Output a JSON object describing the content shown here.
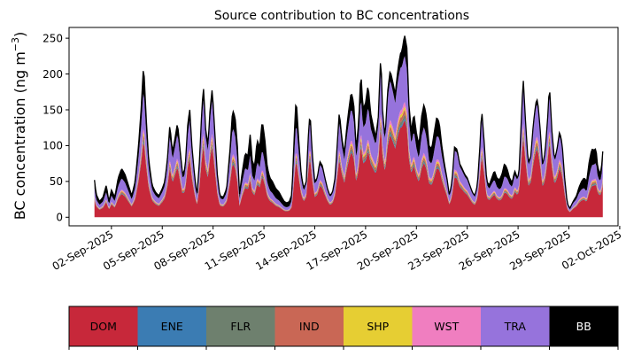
{
  "chart_data": {
    "type": "area",
    "stacked": true,
    "title": "Source contribution to BC concentrations",
    "ylabel": "BC concentration (ng m",
    "ylabel_superscript": "−3",
    "ylabel_close": ")",
    "xlabel": "",
    "ylim": [
      -12,
      265
    ],
    "yticks": [
      0,
      50,
      100,
      150,
      200,
      250
    ],
    "x_start_day": 1.0,
    "x_end_day": 31.0,
    "xlim_days": [
      -0.5,
      31.9
    ],
    "xticks": [
      {
        "day": 2,
        "label": "02-Sep-2025"
      },
      {
        "day": 5,
        "label": "05-Sep-2025"
      },
      {
        "day": 8,
        "label": "08-Sep-2025"
      },
      {
        "day": 11,
        "label": "11-Sep-2025"
      },
      {
        "day": 14,
        "label": "14-Sep-2025"
      },
      {
        "day": 17,
        "label": "17-Sep-2025"
      },
      {
        "day": 20,
        "label": "20-Sep-2025"
      },
      {
        "day": 23,
        "label": "23-Sep-2025"
      },
      {
        "day": 26,
        "label": "26-Sep-2025"
      },
      {
        "day": 29,
        "label": "29-Sep-2025"
      },
      {
        "day": 32,
        "label": "02-Oct-2025"
      }
    ],
    "total_anchors": [
      [
        1.0,
        52
      ],
      [
        1.1,
        32
      ],
      [
        1.3,
        22
      ],
      [
        1.5,
        28
      ],
      [
        1.7,
        45
      ],
      [
        1.85,
        22
      ],
      [
        2.0,
        38
      ],
      [
        2.2,
        28
      ],
      [
        2.4,
        55
      ],
      [
        2.6,
        68
      ],
      [
        2.8,
        60
      ],
      [
        3.0,
        45
      ],
      [
        3.2,
        30
      ],
      [
        3.4,
        50
      ],
      [
        3.6,
        100
      ],
      [
        3.75,
        150
      ],
      [
        3.9,
        215
      ],
      [
        4.05,
        140
      ],
      [
        4.2,
        80
      ],
      [
        4.4,
        45
      ],
      [
        4.6,
        35
      ],
      [
        4.8,
        30
      ],
      [
        5.0,
        40
      ],
      [
        5.15,
        50
      ],
      [
        5.3,
        80
      ],
      [
        5.45,
        130
      ],
      [
        5.6,
        90
      ],
      [
        5.75,
        110
      ],
      [
        5.9,
        132
      ],
      [
        6.05,
        95
      ],
      [
        6.2,
        60
      ],
      [
        6.35,
        68
      ],
      [
        6.5,
        128
      ],
      [
        6.62,
        152
      ],
      [
        6.75,
        100
      ],
      [
        6.9,
        60
      ],
      [
        7.05,
        30
      ],
      [
        7.2,
        80
      ],
      [
        7.35,
        158
      ],
      [
        7.45,
        182
      ],
      [
        7.55,
        125
      ],
      [
        7.7,
        100
      ],
      [
        7.82,
        150
      ],
      [
        7.95,
        180
      ],
      [
        8.1,
        120
      ],
      [
        8.25,
        60
      ],
      [
        8.4,
        30
      ],
      [
        8.6,
        28
      ],
      [
        8.8,
        40
      ],
      [
        9.0,
        95
      ],
      [
        9.15,
        150
      ],
      [
        9.3,
        140
      ],
      [
        9.45,
        95
      ],
      [
        9.55,
        30
      ],
      [
        9.7,
        60
      ],
      [
        9.9,
        90
      ],
      [
        10.05,
        85
      ],
      [
        10.2,
        118
      ],
      [
        10.3,
        80
      ],
      [
        10.45,
        70
      ],
      [
        10.6,
        108
      ],
      [
        10.75,
        98
      ],
      [
        10.9,
        135
      ],
      [
        11.05,
        110
      ],
      [
        11.2,
        70
      ],
      [
        11.35,
        55
      ],
      [
        11.5,
        50
      ],
      [
        11.7,
        40
      ],
      [
        11.9,
        35
      ],
      [
        12.05,
        28
      ],
      [
        12.2,
        22
      ],
      [
        12.35,
        20
      ],
      [
        12.5,
        22
      ],
      [
        12.65,
        32
      ],
      [
        12.8,
        120
      ],
      [
        12.9,
        168
      ],
      [
        13.05,
        110
      ],
      [
        13.2,
        60
      ],
      [
        13.35,
        40
      ],
      [
        13.5,
        50
      ],
      [
        13.6,
        105
      ],
      [
        13.72,
        148
      ],
      [
        13.85,
        90
      ],
      [
        14.0,
        50
      ],
      [
        14.15,
        55
      ],
      [
        14.3,
        78
      ],
      [
        14.45,
        72
      ],
      [
        14.6,
        55
      ],
      [
        14.75,
        40
      ],
      [
        14.9,
        30
      ],
      [
        15.05,
        35
      ],
      [
        15.2,
        55
      ],
      [
        15.35,
        110
      ],
      [
        15.45,
        148
      ],
      [
        15.6,
        110
      ],
      [
        15.75,
        90
      ],
      [
        15.9,
        128
      ],
      [
        16.0,
        148
      ],
      [
        16.15,
        175
      ],
      [
        16.3,
        160
      ],
      [
        16.45,
        95
      ],
      [
        16.6,
        135
      ],
      [
        16.72,
        205
      ],
      [
        16.85,
        150
      ],
      [
        17.0,
        160
      ],
      [
        17.15,
        185
      ],
      [
        17.3,
        145
      ],
      [
        17.45,
        128
      ],
      [
        17.6,
        112
      ],
      [
        17.75,
        140
      ],
      [
        17.9,
        230
      ],
      [
        18.0,
        150
      ],
      [
        18.15,
        110
      ],
      [
        18.3,
        175
      ],
      [
        18.45,
        205
      ],
      [
        18.6,
        190
      ],
      [
        18.75,
        172
      ],
      [
        18.9,
        205
      ],
      [
        19.05,
        228
      ],
      [
        19.15,
        232
      ],
      [
        19.3,
        255
      ],
      [
        19.45,
        235
      ],
      [
        19.55,
        160
      ],
      [
        19.7,
        120
      ],
      [
        19.85,
        145
      ],
      [
        20.0,
        118
      ],
      [
        20.15,
        100
      ],
      [
        20.3,
        140
      ],
      [
        20.45,
        158
      ],
      [
        20.6,
        140
      ],
      [
        20.75,
        100
      ],
      [
        20.9,
        95
      ],
      [
        21.05,
        118
      ],
      [
        21.2,
        140
      ],
      [
        21.35,
        132
      ],
      [
        21.5,
        100
      ],
      [
        21.65,
        75
      ],
      [
        21.8,
        55
      ],
      [
        21.95,
        30
      ],
      [
        22.1,
        50
      ],
      [
        22.25,
        98
      ],
      [
        22.4,
        95
      ],
      [
        22.55,
        75
      ],
      [
        22.7,
        68
      ],
      [
        22.85,
        60
      ],
      [
        23.0,
        55
      ],
      [
        23.15,
        45
      ],
      [
        23.3,
        35
      ],
      [
        23.45,
        30
      ],
      [
        23.6,
        45
      ],
      [
        23.75,
        100
      ],
      [
        23.85,
        152
      ],
      [
        24.0,
        105
      ],
      [
        24.15,
        50
      ],
      [
        24.3,
        45
      ],
      [
        24.45,
        55
      ],
      [
        24.6,
        65
      ],
      [
        24.75,
        55
      ],
      [
        24.9,
        52
      ],
      [
        25.05,
        60
      ],
      [
        25.2,
        75
      ],
      [
        25.35,
        68
      ],
      [
        25.5,
        55
      ],
      [
        25.65,
        48
      ],
      [
        25.8,
        65
      ],
      [
        25.95,
        55
      ],
      [
        26.05,
        60
      ],
      [
        26.2,
        140
      ],
      [
        26.3,
        196
      ],
      [
        26.45,
        130
      ],
      [
        26.6,
        75
      ],
      [
        26.75,
        85
      ],
      [
        26.9,
        130
      ],
      [
        27.05,
        160
      ],
      [
        27.15,
        165
      ],
      [
        27.3,
        125
      ],
      [
        27.45,
        72
      ],
      [
        27.6,
        92
      ],
      [
        27.75,
        140
      ],
      [
        27.85,
        185
      ],
      [
        28.0,
        120
      ],
      [
        28.15,
        80
      ],
      [
        28.3,
        95
      ],
      [
        28.45,
        120
      ],
      [
        28.6,
        103
      ],
      [
        28.75,
        55
      ],
      [
        28.9,
        20
      ],
      [
        29.05,
        12
      ],
      [
        29.25,
        22
      ],
      [
        29.45,
        30
      ],
      [
        29.6,
        42
      ],
      [
        29.75,
        50
      ],
      [
        29.9,
        55
      ],
      [
        30.05,
        50
      ],
      [
        30.2,
        78
      ],
      [
        30.35,
        95
      ],
      [
        30.5,
        94
      ],
      [
        30.6,
        96
      ],
      [
        30.7,
        70
      ],
      [
        30.85,
        60
      ],
      [
        30.95,
        75
      ],
      [
        31.0,
        92
      ]
    ],
    "bb_fraction_anchors": [
      [
        1.0,
        0.22
      ],
      [
        2.5,
        0.2
      ],
      [
        5.0,
        0.12
      ],
      [
        8.0,
        0.08
      ],
      [
        9.0,
        0.15
      ],
      [
        10.5,
        0.28
      ],
      [
        11.0,
        0.3
      ],
      [
        11.8,
        0.34
      ],
      [
        12.5,
        0.3
      ],
      [
        13.5,
        0.05
      ],
      [
        15.0,
        0.06
      ],
      [
        16.0,
        0.12
      ],
      [
        17.0,
        0.18
      ],
      [
        18.0,
        0.05
      ],
      [
        19.0,
        0.08
      ],
      [
        20.0,
        0.18
      ],
      [
        21.0,
        0.22
      ],
      [
        22.0,
        0.05
      ],
      [
        24.0,
        0.05
      ],
      [
        25.0,
        0.28
      ],
      [
        26.0,
        0.04
      ],
      [
        28.0,
        0.04
      ],
      [
        29.0,
        0.05
      ],
      [
        30.0,
        0.28
      ],
      [
        31.0,
        0.15
      ]
    ],
    "series": [
      {
        "name": "DOM",
        "color": "#c7283a",
        "share": 0.6
      },
      {
        "name": "ENE",
        "color": "#3b7cb3",
        "share": 0.012
      },
      {
        "name": "FLR",
        "color": "#6e806e",
        "share": 0.025
      },
      {
        "name": "IND",
        "color": "#c96755",
        "share": 0.03
      },
      {
        "name": "SHP",
        "color": "#e6ce33",
        "share": 0.02
      },
      {
        "name": "WST",
        "color": "#f07ec0",
        "share": 0.028
      },
      {
        "name": "TRA",
        "color": "#9673dc",
        "share": 0.285
      },
      {
        "name": "BB",
        "color": "#000000",
        "share": 0.0
      }
    ]
  },
  "legend": [
    {
      "label": "DOM",
      "color": "#c7283a",
      "text_color": "#000000"
    },
    {
      "label": "ENE",
      "color": "#3b7cb3",
      "text_color": "#000000"
    },
    {
      "label": "FLR",
      "color": "#6e806e",
      "text_color": "#000000"
    },
    {
      "label": "IND",
      "color": "#c96755",
      "text_color": "#000000"
    },
    {
      "label": "SHP",
      "color": "#e6ce33",
      "text_color": "#000000"
    },
    {
      "label": "WST",
      "color": "#f07ec0",
      "text_color": "#000000"
    },
    {
      "label": "TRA",
      "color": "#9673dc",
      "text_color": "#000000"
    },
    {
      "label": "BB",
      "color": "#000000",
      "text_color": "#ffffff"
    }
  ]
}
